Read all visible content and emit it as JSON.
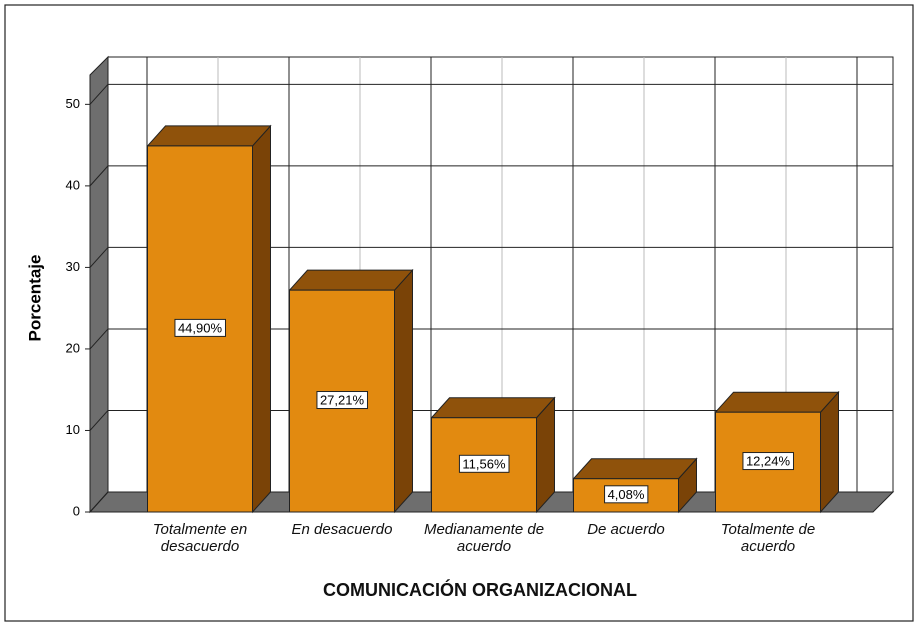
{
  "chart_data": {
    "type": "bar",
    "x_label": "COMUNICACIÓN ORGANIZACIONAL",
    "y_label": "Porcentaje",
    "categories": [
      "Totalmente en desacuerdo",
      "En desacuerdo",
      "Medianamente de acuerdo",
      "De acuerdo",
      "Totalmente de acuerdo"
    ],
    "values": [
      44.9,
      27.21,
      11.56,
      4.08,
      12.24
    ],
    "value_labels": [
      "44,90%",
      "27,21%",
      "11,56%",
      "4,08%",
      "12,24%"
    ],
    "color": "#e28a10",
    "ylim": [
      0,
      53.6
    ],
    "yticks": [
      0,
      10,
      20,
      30,
      40,
      50
    ],
    "grid": true
  }
}
